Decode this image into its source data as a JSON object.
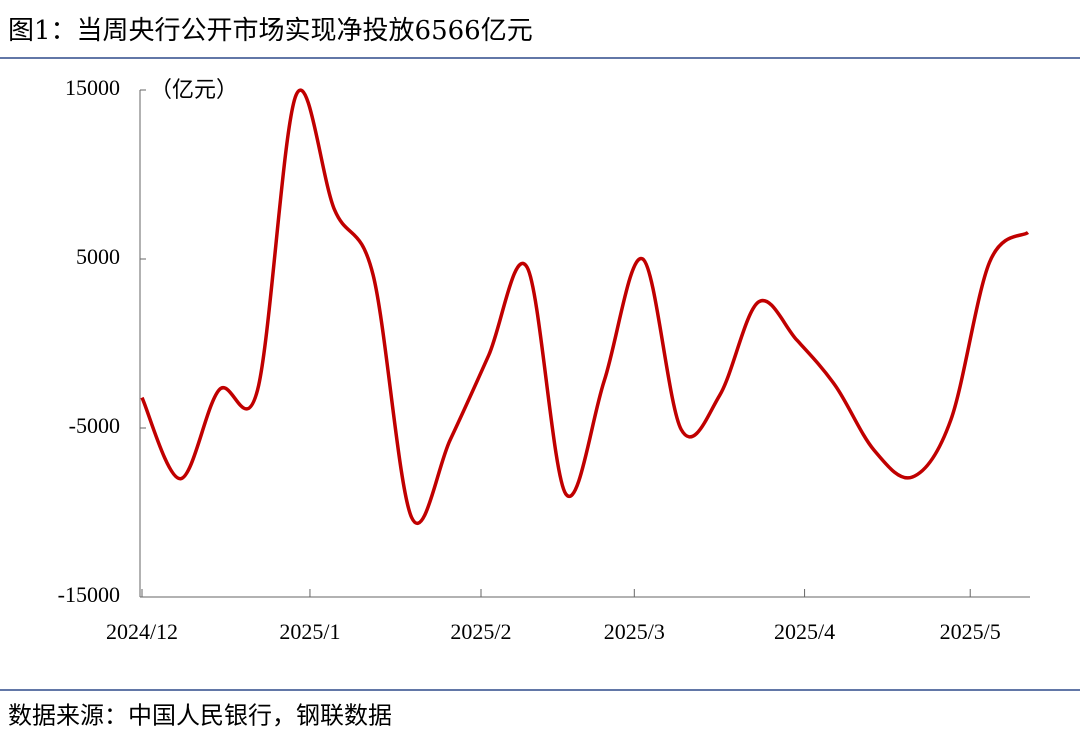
{
  "chart_data": {
    "type": "line",
    "title": "图1：当周央行公开市场实现净投放6566亿元",
    "y_label": "（亿元）",
    "source": "数据来源：中国人民银行，钢联数据",
    "x": [
      0,
      1,
      2,
      3,
      4,
      5,
      6,
      7,
      8,
      9,
      10,
      11,
      12,
      13,
      14,
      15,
      16,
      17,
      18,
      19,
      20,
      21,
      22,
      23
    ],
    "values": [
      -3200,
      -8000,
      -2750,
      -2750,
      14700,
      7900,
      4050,
      -10300,
      -5700,
      -700,
      4500,
      -8900,
      -2200,
      5000,
      -5100,
      -3050,
      2450,
      200,
      -2500,
      -6300,
      -7900,
      -4500,
      4800,
      6566
    ],
    "color": "#c00000",
    "xlim": [
      0,
      23
    ],
    "xticks": [
      {
        "value": 0,
        "label": "2024/12"
      },
      {
        "value": 4.36,
        "label": "2025/1"
      },
      {
        "value": 8.8,
        "label": "2025/2"
      },
      {
        "value": 12.78,
        "label": "2025/3"
      },
      {
        "value": 17.2,
        "label": "2025/4"
      },
      {
        "value": 21.5,
        "label": "2025/5"
      }
    ],
    "ylim": [
      -15000,
      15000
    ],
    "yticks": [
      -15000,
      -5000,
      5000,
      15000
    ],
    "grid": false
  }
}
